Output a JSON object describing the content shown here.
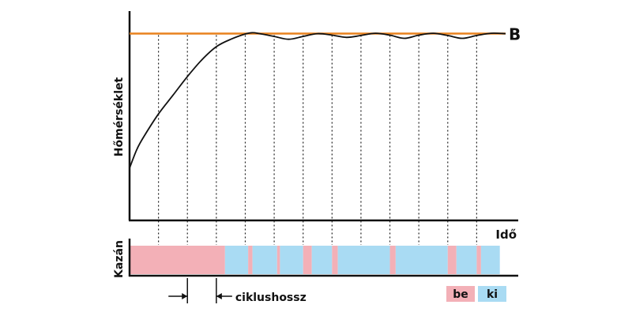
{
  "chart_data": {
    "type": "line",
    "title": "",
    "ylabel": "Hőmérséklet",
    "xlabel": "Idő",
    "setpoint": {
      "label": "B",
      "value": 1.0,
      "color": "#e8821e"
    },
    "xlim": [
      0,
      26
    ],
    "ylim": [
      0,
      1.18
    ],
    "grid_x": [
      2,
      4,
      6,
      8,
      10,
      12,
      14,
      16,
      18,
      20,
      22,
      24
    ],
    "series": [
      {
        "color": "#111111",
        "x": [
          0,
          0.5,
          1,
          2,
          3,
          4,
          5,
          6,
          7,
          8,
          8.5,
          9,
          10,
          11,
          12,
          13,
          14,
          15,
          16,
          17,
          18,
          19,
          20,
          21,
          22,
          23,
          24,
          25,
          26
        ],
        "y": [
          0.28,
          0.38,
          0.45,
          0.57,
          0.67,
          0.77,
          0.86,
          0.93,
          0.97,
          0.998,
          1.005,
          1.0,
          0.985,
          0.97,
          0.985,
          1.0,
          0.992,
          0.98,
          0.99,
          1.002,
          0.992,
          0.975,
          0.992,
          1.002,
          0.99,
          0.975,
          0.99,
          1.002,
          1.0
        ]
      }
    ],
    "boiler": {
      "label": "Kazán",
      "legend": [
        {
          "state": "on",
          "label": "be",
          "color": "#f3b0b7"
        },
        {
          "state": "off",
          "label": "ki",
          "color": "#a9dbf3"
        }
      ],
      "segments": [
        {
          "state": "on",
          "from": 0,
          "to": 6.6
        },
        {
          "state": "off",
          "from": 6.6,
          "to": 8.2
        },
        {
          "state": "on",
          "from": 8.2,
          "to": 8.5
        },
        {
          "state": "off",
          "from": 8.5,
          "to": 10.2
        },
        {
          "state": "on",
          "from": 10.2,
          "to": 10.4
        },
        {
          "state": "off",
          "from": 10.4,
          "to": 12.0
        },
        {
          "state": "on",
          "from": 12.0,
          "to": 12.6
        },
        {
          "state": "off",
          "from": 12.6,
          "to": 14.0
        },
        {
          "state": "on",
          "from": 14.0,
          "to": 14.4
        },
        {
          "state": "off",
          "from": 14.4,
          "to": 18.0
        },
        {
          "state": "on",
          "from": 18.0,
          "to": 18.4
        },
        {
          "state": "off",
          "from": 18.4,
          "to": 22.0
        },
        {
          "state": "on",
          "from": 22.0,
          "to": 22.6
        },
        {
          "state": "off",
          "from": 22.6,
          "to": 24.0
        },
        {
          "state": "on",
          "from": 24.0,
          "to": 24.3
        },
        {
          "state": "off",
          "from": 24.3,
          "to": 25.6
        }
      ]
    },
    "annotation": {
      "text": "ciklushossz",
      "from": 4,
      "to": 6
    }
  }
}
